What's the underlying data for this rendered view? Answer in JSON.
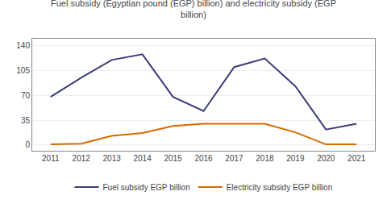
{
  "chart_data": {
    "type": "line",
    "title": "Fuel subsidy (Egyptian pound (EGP) billion) and electricity subsidy (EGP\nbillion)",
    "x": [
      2011,
      2012,
      2013,
      2014,
      2015,
      2016,
      2017,
      2018,
      2019,
      2020,
      2021
    ],
    "series": [
      {
        "name": "Fuel subsidy EGP billion",
        "color": "#3d3d7a",
        "values": [
          68,
          95,
          120,
          128,
          68,
          48,
          110,
          122,
          83,
          22,
          30
        ]
      },
      {
        "name": "Electricity subsidy EGP billion",
        "color": "#d46a00",
        "values": [
          1,
          2,
          13,
          17,
          27,
          30,
          30,
          30,
          18,
          1,
          1
        ]
      }
    ],
    "xlim": [
      2010.4,
      2021.6
    ],
    "xticks": [
      2011,
      2012,
      2013,
      2014,
      2015,
      2016,
      2017,
      2018,
      2019,
      2020,
      2021
    ],
    "ylim": [
      -8,
      150
    ],
    "yticks": [
      0,
      35,
      70,
      105,
      140
    ],
    "grid": "y",
    "legend": "bottom"
  }
}
